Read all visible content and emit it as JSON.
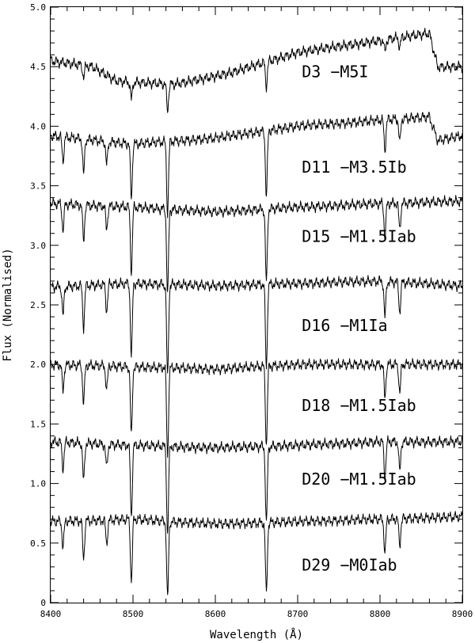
{
  "chart_data": {
    "type": "line",
    "title": "",
    "xlabel": "Wavelength (Å)",
    "ylabel": "Flux (Normalised)",
    "xlim": [
      8400,
      8900
    ],
    "ylim": [
      0,
      5.0
    ],
    "x_ticks": [
      8400,
      8500,
      8600,
      8700,
      8800,
      8900
    ],
    "x_tick_labels": [
      "8400",
      "8500",
      "8600",
      "8700",
      "8800",
      "8900"
    ],
    "y_ticks": [
      0,
      0.5,
      1.0,
      1.5,
      2.0,
      2.5,
      3.0,
      3.5,
      4.0,
      4.5,
      5.0
    ],
    "y_tick_labels": [
      "0",
      "0.5",
      "1.0",
      "1.5",
      "2.0",
      "2.5",
      "3.0",
      "3.5",
      "4.0",
      "4.5",
      "5.0"
    ],
    "grid": false,
    "legend": "none",
    "line_color": "#000000",
    "series": [
      {
        "name": "D3 −M5I",
        "label_at": [
          8705,
          4.41
        ],
        "continuum": [
          [
            8400,
            4.55
          ],
          [
            8450,
            4.5
          ],
          [
            8480,
            4.38
          ],
          [
            8550,
            4.35
          ],
          [
            8620,
            4.45
          ],
          [
            8700,
            4.62
          ],
          [
            8760,
            4.68
          ],
          [
            8860,
            4.78
          ],
          [
            8870,
            4.5
          ],
          [
            8900,
            4.5
          ]
        ],
        "lines": [
          [
            8498,
            0.15
          ],
          [
            8542,
            0.22
          ],
          [
            8662,
            0.2
          ],
          [
            8440,
            0.1
          ],
          [
            8806,
            0.1
          ],
          [
            8824,
            0.08
          ]
        ]
      },
      {
        "name": "D11 −M3.5Ib",
        "label_at": [
          8705,
          3.61
        ],
        "continuum": [
          [
            8400,
            3.92
          ],
          [
            8500,
            3.85
          ],
          [
            8600,
            3.9
          ],
          [
            8700,
            4.0
          ],
          [
            8800,
            4.05
          ],
          [
            8860,
            4.08
          ],
          [
            8870,
            3.88
          ],
          [
            8900,
            3.92
          ]
        ],
        "lines": [
          [
            8498,
            0.45
          ],
          [
            8542,
            0.6
          ],
          [
            8662,
            0.55
          ],
          [
            8440,
            0.3
          ],
          [
            8806,
            0.25
          ],
          [
            8824,
            0.2
          ],
          [
            8415,
            0.2
          ],
          [
            8468,
            0.2
          ]
        ]
      },
      {
        "name": "D15 −M1.5Iab",
        "label_at": [
          8705,
          3.03
        ],
        "continuum": [
          [
            8400,
            3.35
          ],
          [
            8500,
            3.32
          ],
          [
            8600,
            3.28
          ],
          [
            8700,
            3.32
          ],
          [
            8800,
            3.35
          ],
          [
            8900,
            3.37
          ]
        ],
        "lines": [
          [
            8498,
            0.55
          ],
          [
            8542,
            0.72
          ],
          [
            8662,
            0.62
          ],
          [
            8440,
            0.3
          ],
          [
            8806,
            0.28
          ],
          [
            8824,
            0.22
          ],
          [
            8415,
            0.22
          ],
          [
            8468,
            0.2
          ]
        ]
      },
      {
        "name": "D16 −M1Ia",
        "label_at": [
          8705,
          2.28
        ],
        "continuum": [
          [
            8400,
            2.65
          ],
          [
            8500,
            2.68
          ],
          [
            8600,
            2.66
          ],
          [
            8700,
            2.68
          ],
          [
            8800,
            2.7
          ],
          [
            8900,
            2.66
          ]
        ],
        "lines": [
          [
            8498,
            0.62
          ],
          [
            8542,
            0.78
          ],
          [
            8662,
            0.7
          ],
          [
            8440,
            0.35
          ],
          [
            8806,
            0.3
          ],
          [
            8824,
            0.25
          ],
          [
            8415,
            0.25
          ],
          [
            8468,
            0.22
          ]
        ]
      },
      {
        "name": "D18 −M1.5Iab",
        "label_at": [
          8705,
          1.61
        ],
        "continuum": [
          [
            8400,
            2.0
          ],
          [
            8500,
            1.98
          ],
          [
            8600,
            1.96
          ],
          [
            8700,
            2.0
          ],
          [
            8800,
            2.0
          ],
          [
            8900,
            2.0
          ]
        ],
        "lines": [
          [
            8498,
            0.58
          ],
          [
            8542,
            0.74
          ],
          [
            8662,
            0.66
          ],
          [
            8440,
            0.32
          ],
          [
            8806,
            0.28
          ],
          [
            8824,
            0.24
          ],
          [
            8415,
            0.22
          ],
          [
            8468,
            0.2
          ]
        ]
      },
      {
        "name": "D20 −M1.5Iab",
        "label_at": [
          8705,
          0.99
        ],
        "continuum": [
          [
            8400,
            1.35
          ],
          [
            8500,
            1.32
          ],
          [
            8600,
            1.3
          ],
          [
            8700,
            1.32
          ],
          [
            8800,
            1.35
          ],
          [
            8900,
            1.35
          ]
        ],
        "lines": [
          [
            8498,
            0.6
          ],
          [
            8542,
            0.74
          ],
          [
            8662,
            0.65
          ],
          [
            8440,
            0.32
          ],
          [
            8806,
            0.3
          ],
          [
            8824,
            0.25
          ],
          [
            8415,
            0.22
          ],
          [
            8468,
            0.2
          ]
        ]
      },
      {
        "name": "D29 −M0Iab",
        "label_at": [
          8705,
          0.27
        ],
        "continuum": [
          [
            8400,
            0.68
          ],
          [
            8500,
            0.7
          ],
          [
            8600,
            0.66
          ],
          [
            8700,
            0.68
          ],
          [
            8800,
            0.7
          ],
          [
            8900,
            0.72
          ]
        ],
        "lines": [
          [
            8498,
            0.52
          ],
          [
            8542,
            0.65
          ],
          [
            8662,
            0.6
          ],
          [
            8440,
            0.32
          ],
          [
            8806,
            0.28
          ],
          [
            8824,
            0.22
          ],
          [
            8415,
            0.22
          ],
          [
            8468,
            0.2
          ]
        ]
      }
    ]
  }
}
